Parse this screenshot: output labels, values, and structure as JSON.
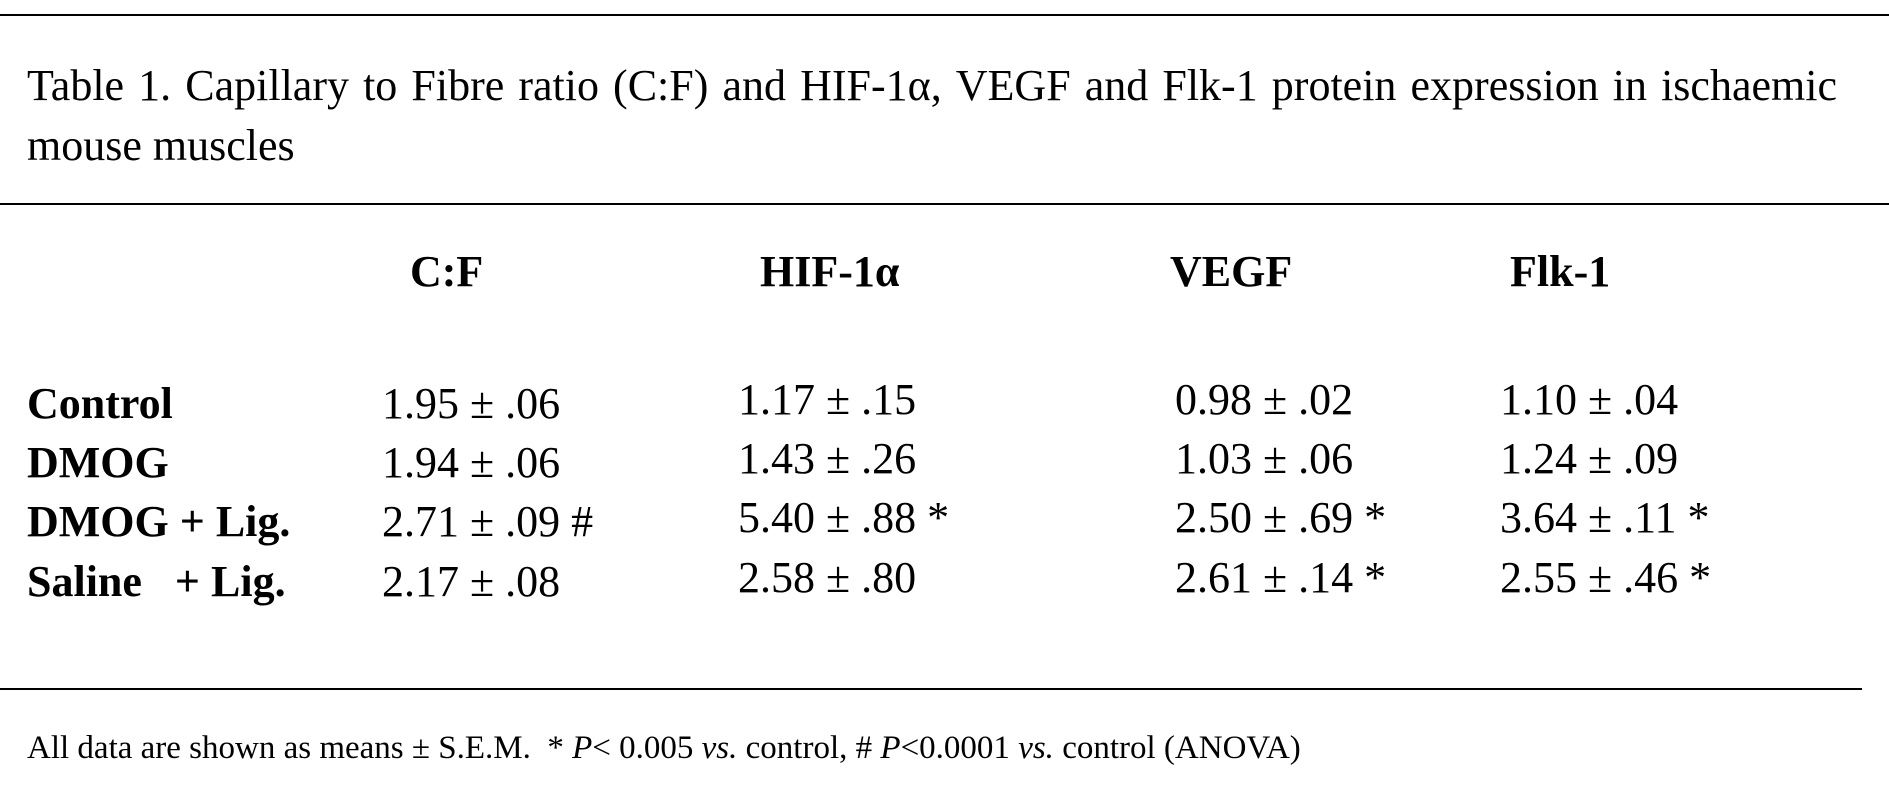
{
  "caption": "Table 1. Capillary to Fibre ratio (C:F) and HIF-1α, VEGF and Flk-1 protein expression in ischaemic mouse muscles",
  "columns": [
    "C:F",
    "HIF-1α",
    "VEGF",
    "Flk-1"
  ],
  "rows": [
    {
      "label": "Control",
      "cells": [
        "1.95 ± .06",
        "1.17 ± .15",
        "0.98 ± .02",
        "1.10 ± .04"
      ]
    },
    {
      "label": "DMOG",
      "cells": [
        "1.94 ± .06",
        "1.43 ± .26",
        "1.03 ± .06",
        "1.24 ± .09"
      ]
    },
    {
      "label": "DMOG + Lig.",
      "cells": [
        "2.71 ± .09 #",
        "5.40 ± .88 *",
        "2.50 ± .69 *",
        "3.64 ± .11 *"
      ]
    },
    {
      "label": "Saline   + Lig.",
      "cells": [
        "2.17 ± .08",
        "2.58 ± .80",
        "2.61 ± .14 *",
        "2.55 ± .46 *"
      ]
    }
  ],
  "footnote": {
    "part1": "All data are shown as means ± S.E.M.  * ",
    "p1": "P",
    "part2": "< 0.005 ",
    "vs1": "vs.",
    "part3": " control, # ",
    "p2": "P",
    "part4": "<0.0001 ",
    "vs2": "vs.",
    "part5": " control (ANOVA)"
  }
}
